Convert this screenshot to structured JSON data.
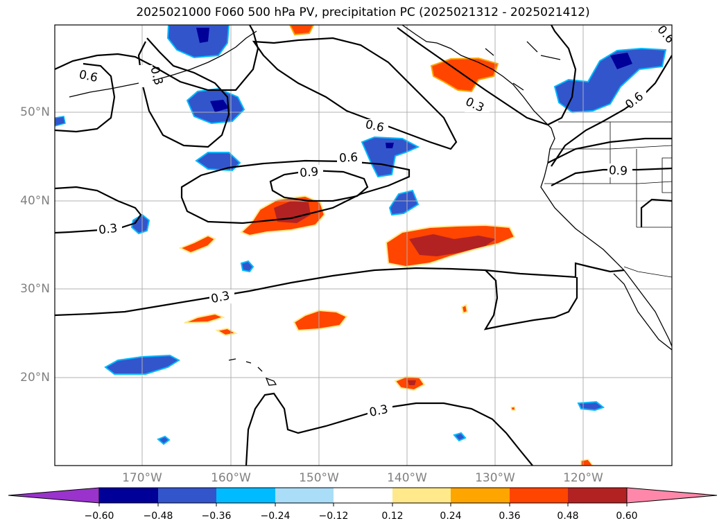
{
  "title": "2025021000 F060 500 hPa PV, precipitation PC (2025021312 - 2025021412)",
  "lat_labels": [
    "50°N",
    "40°N",
    "30°N",
    "20°N"
  ],
  "lon_labels": [
    "170°W",
    "160°W",
    "150°W",
    "140°W",
    "130°W",
    "120°W"
  ],
  "colorbar": {
    "ticks": [
      "−0.60",
      "−0.48",
      "−0.36",
      "−0.24",
      "−0.12",
      "0.12",
      "0.24",
      "0.36",
      "0.48",
      "0.60"
    ],
    "colors": [
      "#9933cc",
      "#000099",
      "#3355cc",
      "#00bbff",
      "#aaddf7",
      "#ffffff",
      "#ffe98a",
      "#ffa500",
      "#ff4500",
      "#b22222",
      "#ff88aa"
    ]
  },
  "contour_labels": [
    "0.6",
    "0.3",
    "0.6",
    "0.3",
    "0.6",
    "0.6",
    "0.9",
    "0.3",
    "0.3",
    "0.3",
    "0.9",
    "0.6",
    "0.6"
  ],
  "colors": {
    "contour": "#000000",
    "grid": "#b0b0b0",
    "negative_dark": "#000099",
    "negative_mid": "#3355cc",
    "negative_light": "#00bbff",
    "positive_light": "#ffe98a",
    "positive_mid": "#ff4500",
    "positive_dark": "#b22222"
  }
}
